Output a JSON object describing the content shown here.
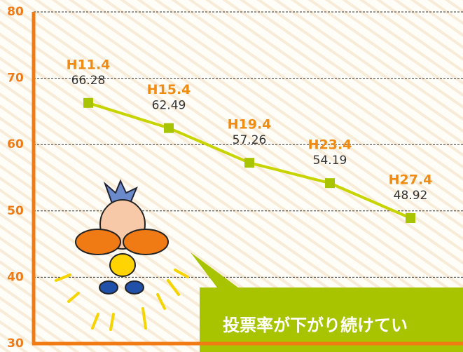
{
  "chart_data": {
    "type": "line",
    "categories": [
      "H11.4",
      "H15.4",
      "H19.4",
      "H23.4",
      "H27.4"
    ],
    "values": [
      66.28,
      62.49,
      57.26,
      54.19,
      48.92
    ],
    "color": "#c8d400",
    "marker_color": "#a8c400",
    "ylim": [
      30,
      80
    ],
    "yticks": [
      30,
      40,
      50,
      60,
      70,
      80
    ],
    "grid": true,
    "callout": "投票率が下がり続けてい"
  }
}
